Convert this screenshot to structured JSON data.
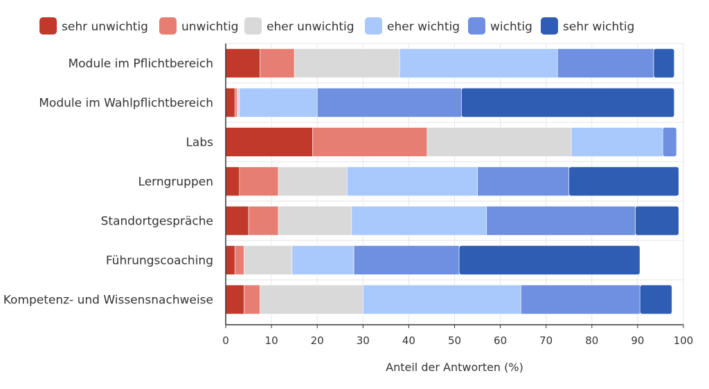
{
  "chart_data": {
    "type": "bar",
    "orientation": "horizontal",
    "stacked": true,
    "categories": [
      "Module im Pflichtbereich",
      "Module im Wahlpflichtbereich",
      "Labs",
      "Lerngruppen",
      "Standortgespräche",
      "Führungscoaching",
      "Kompetenz- und Wissensnachweise"
    ],
    "series": [
      {
        "name": "sehr unwichtig",
        "color": "#c0392b",
        "values": [
          7.5,
          2,
          19,
          3,
          5,
          2,
          4
        ]
      },
      {
        "name": "unwichtig",
        "color": "#e67e73",
        "values": [
          7.5,
          0.5,
          25,
          8.5,
          6.5,
          2,
          3.5
        ]
      },
      {
        "name": "eher unwichtig",
        "color": "#d9d9d9",
        "values": [
          23,
          0.5,
          31.5,
          15,
          16,
          10.5,
          22.5
        ]
      },
      {
        "name": "eher wichtig",
        "color": "#a9c8fc",
        "values": [
          34.5,
          17,
          20,
          28.5,
          29.5,
          13.5,
          34.5
        ]
      },
      {
        "name": "wichtig",
        "color": "#6f8fe0",
        "values": [
          21,
          31.5,
          3,
          20,
          32.5,
          23,
          26
        ]
      },
      {
        "name": "sehr wichtig",
        "color": "#2f5db3",
        "values": [
          4.5,
          46.5,
          0,
          24,
          9.5,
          39.5,
          7
        ]
      }
    ],
    "xlabel": "Anteil der Antworten (%)",
    "ylabel": "",
    "xlim": [
      0,
      100
    ],
    "xticks": [
      0,
      10,
      20,
      30,
      40,
      50,
      60,
      70,
      80,
      90,
      100
    ],
    "grid": true,
    "legend_position": "top"
  }
}
